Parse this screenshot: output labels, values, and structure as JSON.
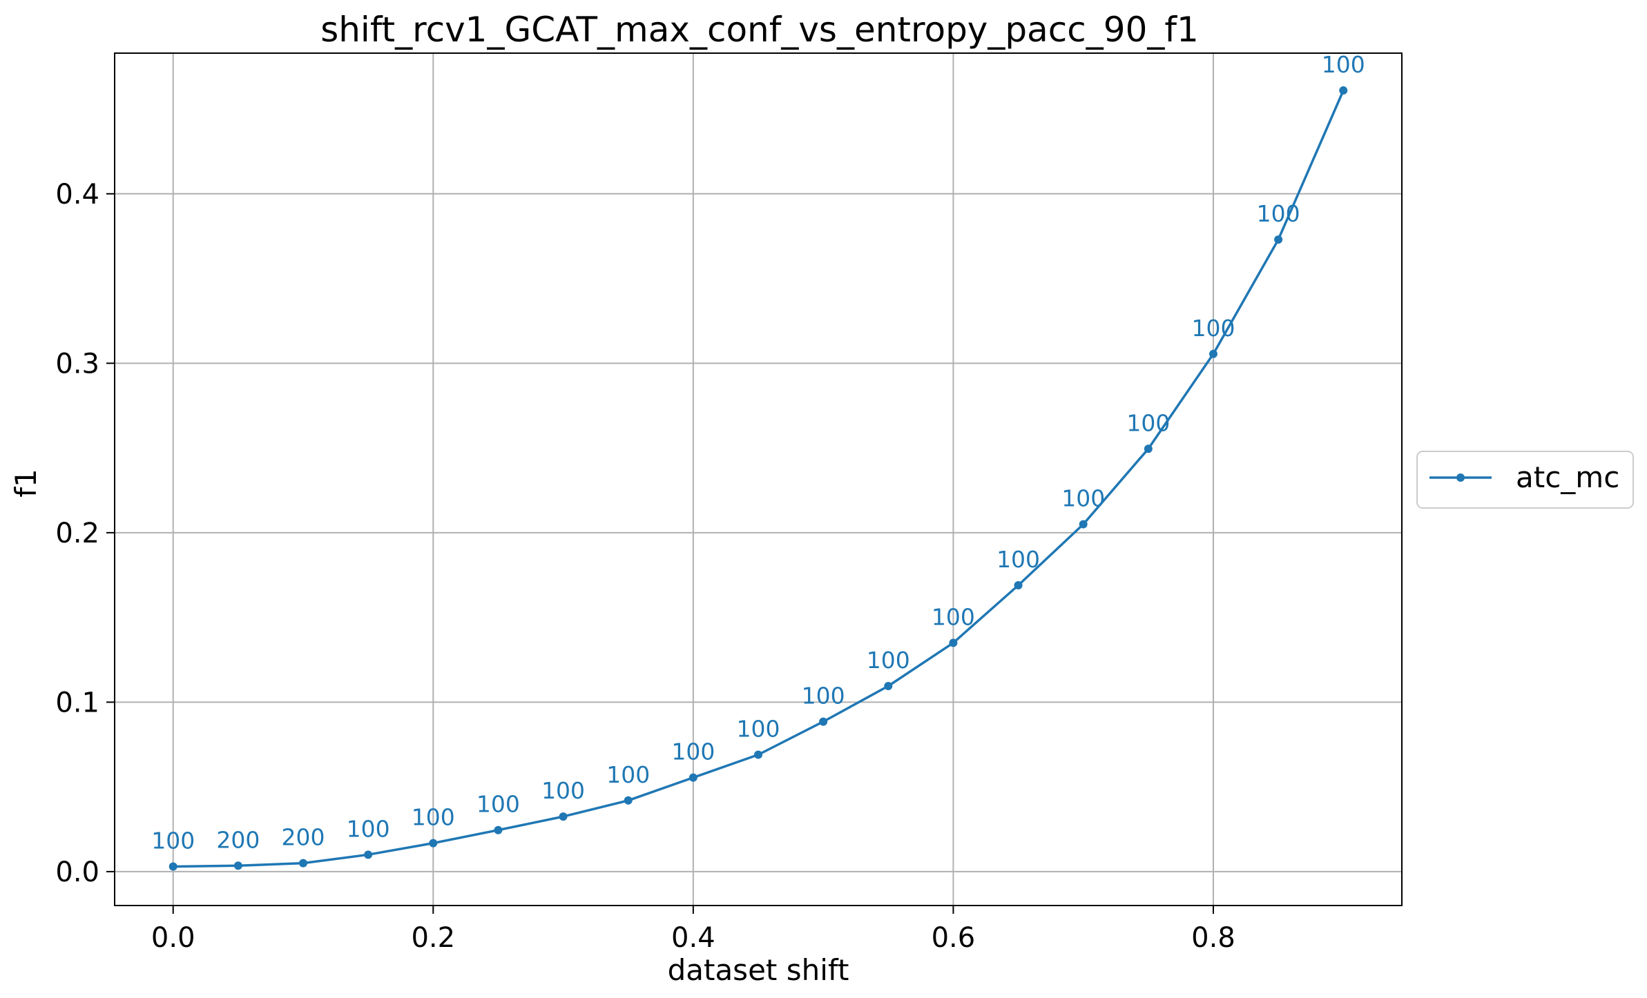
{
  "chart_data": {
    "type": "line",
    "title": "shift_rcv1_GCAT_max_conf_vs_entropy_pacc_90_f1",
    "xlabel": "dataset shift",
    "ylabel": "f1",
    "xlim": [
      -0.045,
      0.945
    ],
    "ylim": [
      -0.02,
      0.483
    ],
    "xticks": [
      0.0,
      0.2,
      0.4,
      0.6,
      0.8
    ],
    "xtick_labels": [
      "0.0",
      "0.2",
      "0.4",
      "0.6",
      "0.8"
    ],
    "yticks": [
      0.0,
      0.1,
      0.2,
      0.3,
      0.4
    ],
    "ytick_labels": [
      "0.0",
      "0.1",
      "0.2",
      "0.3",
      "0.4"
    ],
    "grid": true,
    "legend_position": "outside-right",
    "x": [
      0.0,
      0.05,
      0.1,
      0.15,
      0.2,
      0.25,
      0.3,
      0.35,
      0.4,
      0.45,
      0.5,
      0.55,
      0.6,
      0.65,
      0.7,
      0.75,
      0.8,
      0.85,
      0.9
    ],
    "series": [
      {
        "name": "atc_mc",
        "color": "#1f77b4",
        "values": [
          0.003,
          0.0035,
          0.005,
          0.01,
          0.0168,
          0.0245,
          0.0325,
          0.042,
          0.0555,
          0.069,
          0.0885,
          0.1095,
          0.135,
          0.169,
          0.205,
          0.2495,
          0.3055,
          0.373,
          0.461
        ],
        "point_labels": [
          "100",
          "200",
          "200",
          "100",
          "100",
          "100",
          "100",
          "100",
          "100",
          "100",
          "100",
          "100",
          "100",
          "100",
          "100",
          "100",
          "100",
          "100",
          "100"
        ]
      }
    ]
  }
}
